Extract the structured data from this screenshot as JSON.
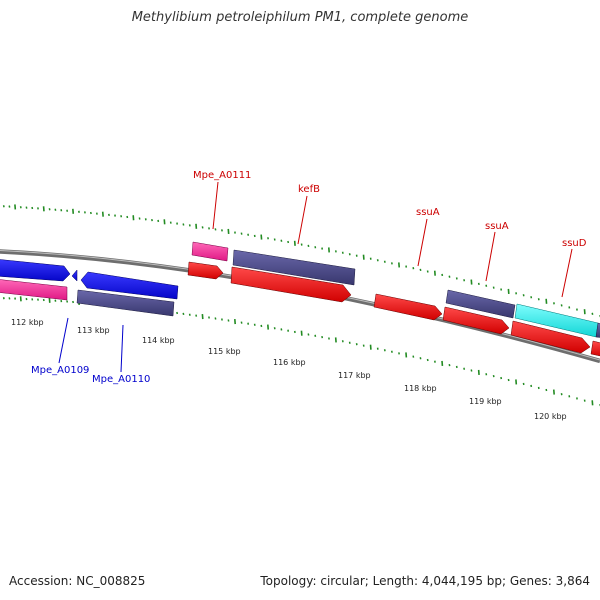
{
  "title": "Methylibium petroleiphilum PM1, complete genome",
  "footer": {
    "accession": "Accession: NC_008825",
    "summary": "Topology: circular; Length: 4,044,195 bp; Genes: 3,864"
  },
  "tick_labels": [
    "112 kbp",
    "113 kbp",
    "114 kbp",
    "115 kbp",
    "116 kbp",
    "117 kbp",
    "118 kbp",
    "119 kbp",
    "120 kbp"
  ],
  "gene_labels": [
    {
      "text": "Mpe_A0111",
      "color": "#cc0000"
    },
    {
      "text": "kefB",
      "color": "#cc0000"
    },
    {
      "text": "ssuA",
      "color": "#cc0000"
    },
    {
      "text": "ssuA",
      "color": "#cc0000"
    },
    {
      "text": "ssuD",
      "color": "#cc0000"
    },
    {
      "text": "Mpe_A0109",
      "color": "#0000cc"
    },
    {
      "text": "Mpe_A0110",
      "color": "#0000cc"
    }
  ],
  "colors": {
    "backbone": "#888888",
    "tick": "#228b22",
    "gene": "#ff0000",
    "cds_dark": "#4b4a8c",
    "cds_pink": "#ff3399",
    "cds_cyan": "#22eeee",
    "cds_blue": "#1111ee",
    "forward_label": "#cc0000",
    "reverse_label": "#0000cc"
  }
}
